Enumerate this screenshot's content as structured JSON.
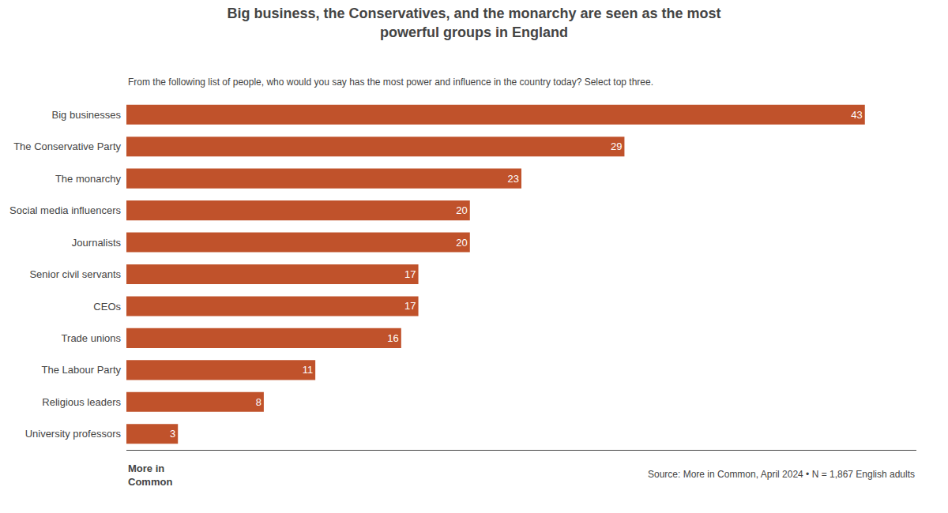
{
  "chart_data": {
    "type": "bar",
    "orientation": "horizontal",
    "title": "Big business, the Conservatives, and the monarchy are seen as the most\npowerful groups in England",
    "subtitle": "From the following list of people, who would you say has the most power and influence in the country today? Select top three.",
    "categories": [
      "University professors",
      "Religious leaders",
      "The Labour Party",
      "Trade unions",
      "CEOs",
      "Senior civil servants",
      "Journalists",
      "Social media influencers",
      "The monarchy",
      "The Conservative Party",
      "Big businesses"
    ],
    "values": [
      3,
      8,
      11,
      16,
      17,
      17,
      20,
      20,
      23,
      29,
      43
    ],
    "color": "#c0522b",
    "xlim": [
      0,
      46
    ],
    "data_labels": true,
    "tick_labels": "y",
    "grid": false,
    "annotations": [
      "Source: More in Common, April 2024 • N = 1,867 English adults",
      "More in\nCommon"
    ]
  }
}
